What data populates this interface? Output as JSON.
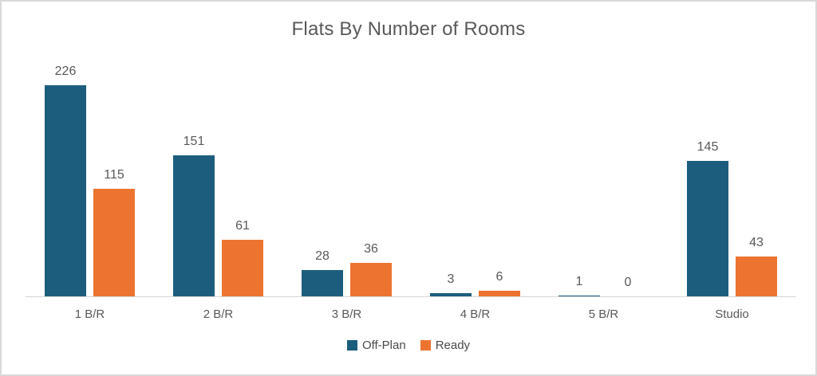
{
  "chart_data": {
    "type": "bar",
    "title": "Flats By Number of Rooms",
    "categories": [
      "1 B/R",
      "2 B/R",
      "3 B/R",
      "4 B/R",
      "5 B/R",
      "Studio"
    ],
    "series": [
      {
        "name": "Off-Plan",
        "color": "#1C5D7D",
        "values": [
          226,
          151,
          28,
          3,
          1,
          145
        ]
      },
      {
        "name": "Ready",
        "color": "#EC7430",
        "values": [
          115,
          61,
          36,
          6,
          0,
          43
        ]
      }
    ],
    "xlabel": "",
    "ylabel": "",
    "ylim": [
      0,
      250
    ],
    "grid": false,
    "legend_position": "bottom",
    "data_labels": true
  },
  "colors": {
    "title_text": "#595959",
    "label_text": "#595959",
    "axis_line": "#d6d6d6",
    "frame_border": "#d9d9d9",
    "background": "#ffffff"
  }
}
